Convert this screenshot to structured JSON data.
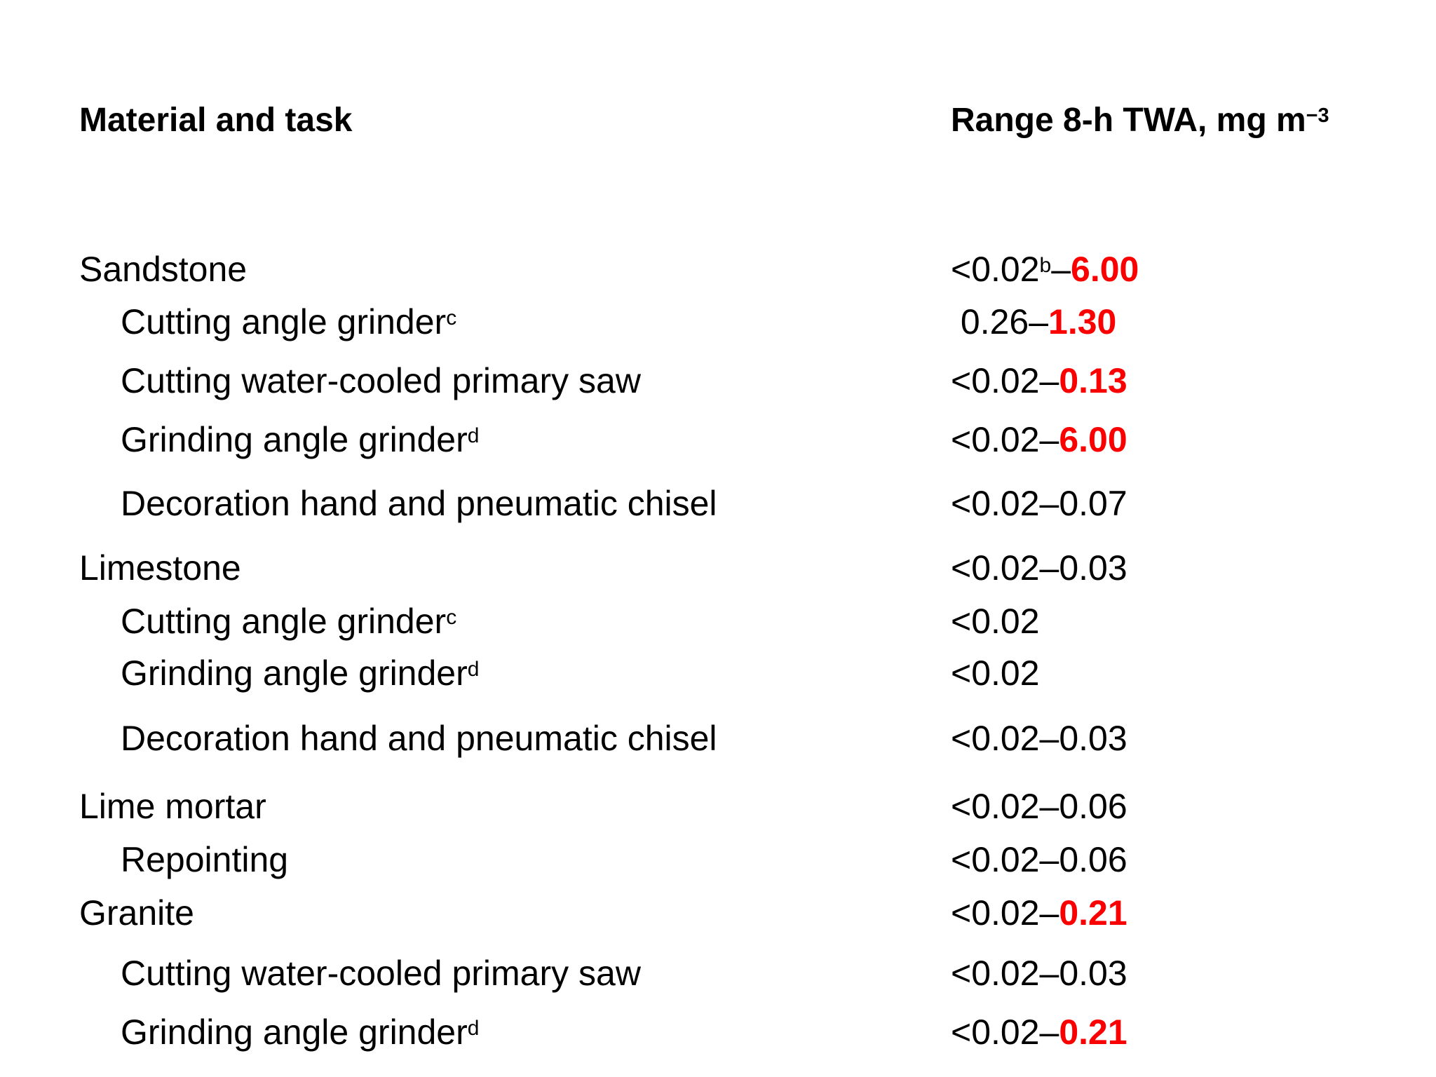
{
  "colors": {
    "background": "#ffffff",
    "text": "#000000",
    "highlight_red": "#fa0000"
  },
  "table": {
    "header": {
      "material": "Material and task",
      "range": "Range 8-h TWA, mg m",
      "range_sup": "−3"
    },
    "rows": [
      {
        "label": "Sandstone",
        "sup": "",
        "level": 0,
        "v1": "<0.02",
        "vsup": "b",
        "v2": "–",
        "vred": "6.00"
      },
      {
        "label": "Cutting angle grinder",
        "sup": "c",
        "level": 1,
        "v1": " 0.26–",
        "vsup": "",
        "v2": "",
        "vred": "1.30"
      },
      {
        "label": "Cutting water-cooled primary saw",
        "sup": "",
        "level": 1,
        "v1": "<0.02–",
        "vsup": "",
        "v2": "",
        "vred": "0.13"
      },
      {
        "label": "Grinding angle grinder",
        "sup": "d",
        "level": 1,
        "v1": "<0.02–",
        "vsup": "",
        "v2": "",
        "vred": "6.00"
      },
      {
        "label": "Decoration hand and pneumatic chisel",
        "sup": "",
        "level": 1,
        "v1": "<0.02–0.07",
        "vsup": "",
        "v2": "",
        "vred": ""
      },
      {
        "label": "Limestone",
        "sup": "",
        "level": 0,
        "v1": "<0.02–0.03",
        "vsup": "",
        "v2": "",
        "vred": ""
      },
      {
        "label": "Cutting angle grinder",
        "sup": "c",
        "level": 1,
        "v1": "<0.02",
        "vsup": "",
        "v2": "",
        "vred": ""
      },
      {
        "label": "Grinding angle grinder",
        "sup": "d",
        "level": 1,
        "v1": "<0.02",
        "vsup": "",
        "v2": "",
        "vred": ""
      },
      {
        "label": "Decoration hand and pneumatic chisel",
        "sup": "",
        "level": 1,
        "v1": "<0.02–0.03",
        "vsup": "",
        "v2": "",
        "vred": ""
      },
      {
        "label": "Lime mortar",
        "sup": "",
        "level": 0,
        "v1": "<0.02–0.06",
        "vsup": "",
        "v2": "",
        "vred": ""
      },
      {
        "label": "Repointing",
        "sup": "",
        "level": 1,
        "v1": "<0.02–0.06",
        "vsup": "",
        "v2": "",
        "vred": ""
      },
      {
        "label": "Granite",
        "sup": "",
        "level": 0,
        "v1": "<0.02–",
        "vsup": "",
        "v2": "",
        "vred": "0.21"
      },
      {
        "label": "Cutting water-cooled primary saw",
        "sup": "",
        "level": 1,
        "v1": "<0.02–0.03",
        "vsup": "",
        "v2": "",
        "vred": ""
      },
      {
        "label": "Grinding angle grinder",
        "sup": "d",
        "level": 1,
        "v1": "<0.02–",
        "vsup": "",
        "v2": "",
        "vred": "0.21"
      }
    ]
  }
}
